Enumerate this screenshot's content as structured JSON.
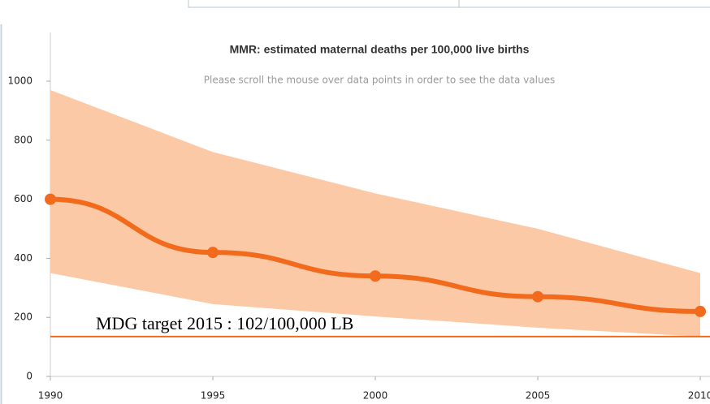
{
  "chart_data": {
    "type": "line",
    "title": "MMR: estimated maternal deaths per 100,000 live births",
    "subtitle": "Please scroll the mouse over data points in order to see the data values",
    "x": [
      1990,
      1995,
      2000,
      2005,
      2010
    ],
    "values": [
      600,
      420,
      340,
      270,
      220
    ],
    "upper": [
      970,
      760,
      620,
      500,
      350
    ],
    "lower": [
      350,
      245,
      203,
      165,
      135
    ],
    "color": "#f26b1d",
    "band_color": "#fcc9a6",
    "xlim": [
      1990,
      2010
    ],
    "xticks": [
      1990,
      1995,
      2000,
      2005,
      2010
    ],
    "ylim": [
      0,
      1165
    ],
    "yticks": [
      0,
      200,
      400,
      600,
      800,
      1000
    ],
    "annotations": [
      {
        "text": "MDG target 2015 : 102/100,000 LB",
        "y": 135,
        "color": "#f26b1d"
      }
    ]
  }
}
